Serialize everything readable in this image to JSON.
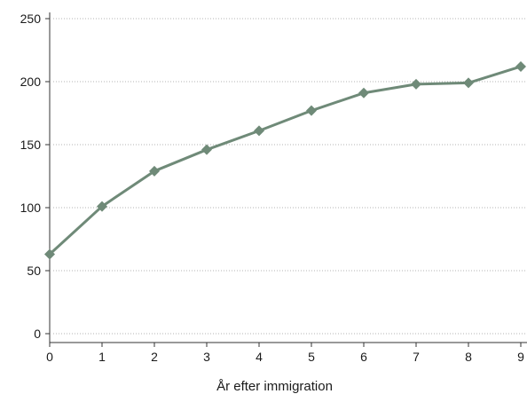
{
  "chart_data": {
    "type": "line",
    "title": "",
    "xlabel": "År efter immigration",
    "ylabel": "",
    "x": [
      0,
      1,
      2,
      3,
      4,
      5,
      6,
      7,
      8,
      9
    ],
    "xticks": [
      0,
      1,
      2,
      3,
      4,
      5,
      6,
      7,
      8,
      9
    ],
    "yticks": [
      0,
      50,
      100,
      150,
      200,
      250
    ],
    "xlim": [
      0,
      9
    ],
    "ylim": [
      0,
      250
    ],
    "grid": "horizontal dotted",
    "legend": "none",
    "series": [
      {
        "values": [
          63,
          101,
          129,
          146,
          161,
          177,
          191,
          198,
          199,
          212
        ],
        "marker": "diamond",
        "color": "#6f8a78"
      }
    ],
    "colors": {
      "series": "#6f8a78",
      "axis": "#333333",
      "grid": "#9a9a9a"
    }
  }
}
